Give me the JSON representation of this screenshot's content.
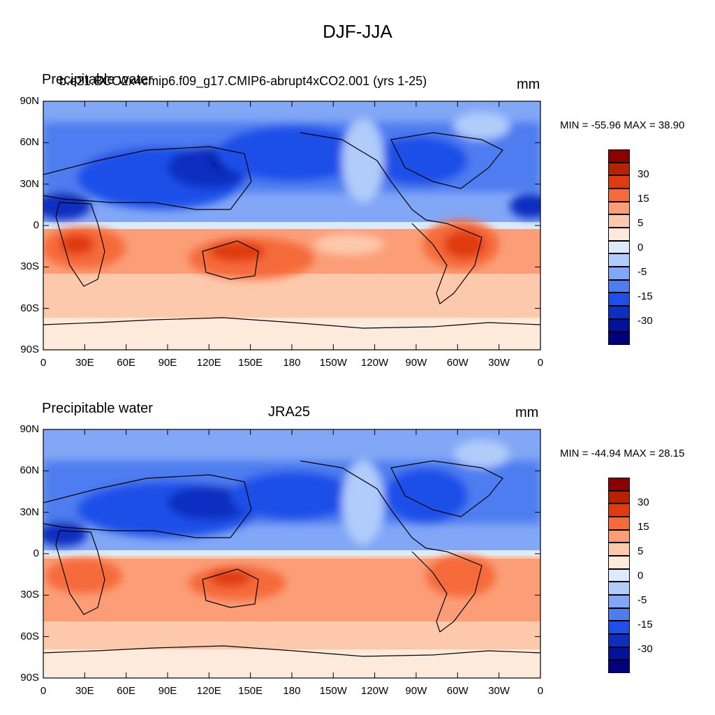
{
  "figure_title": "DJF-JJA",
  "panels": [
    {
      "left_title": "Precipitable water",
      "center_title": "b.e21.BCO2x4cmip6.f09_g17.CMIP6-abrupt4xCO2.001 (yrs 1-25)",
      "units": "mm",
      "minmax": "MIN = -55.96 MAX =  38.90",
      "stats": {
        "min": -55.96,
        "max": 38.9
      }
    },
    {
      "left_title": "Precipitable water",
      "center_title": "JRA25",
      "units": "mm",
      "minmax": "MIN = -44.94 MAX =  28.15",
      "stats": {
        "min": -44.94,
        "max": 28.15
      }
    }
  ],
  "axes": {
    "lat_labels": [
      "90N",
      "60N",
      "30N",
      "0",
      "30S",
      "60S",
      "90S"
    ],
    "lon_labels": [
      "0",
      "30E",
      "60E",
      "90E",
      "120E",
      "150E",
      "180",
      "150W",
      "120W",
      "90W",
      "60W",
      "30W",
      "0"
    ]
  },
  "colorbar": {
    "labels": [
      "30",
      "15",
      "5",
      "0",
      "-5",
      "-15",
      "-30"
    ],
    "colors": [
      "#8b0000",
      "#b82200",
      "#e03a10",
      "#f56a3a",
      "#fb9e78",
      "#fdc9ad",
      "#feeada",
      "#dbebfb",
      "#b0ccfa",
      "#82a7f6",
      "#4e7df0",
      "#1f4fe8",
      "#0c2fc0",
      "#03129a",
      "#00007d"
    ]
  }
}
